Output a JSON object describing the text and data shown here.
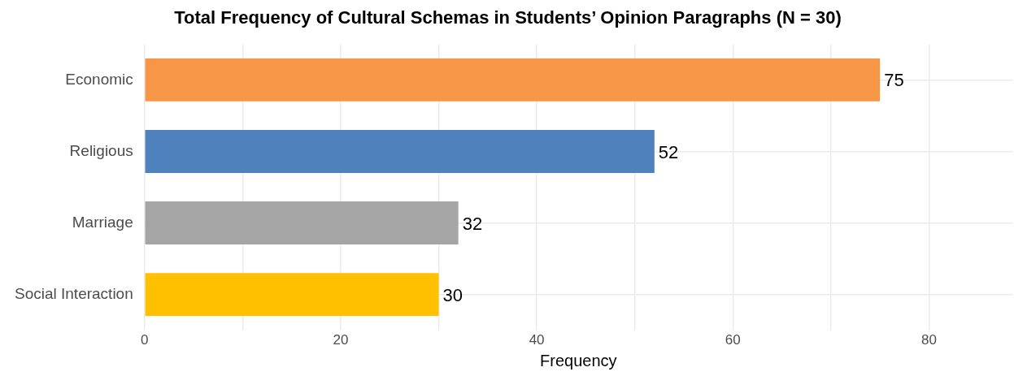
{
  "chart_data": {
    "type": "bar",
    "orientation": "horizontal",
    "title": "Total Frequency of Cultural Schemas in Students’ Opinion Paragraphs (N = 30)",
    "xlabel": "Frequency",
    "categories": [
      "Economic",
      "Religious",
      "Marriage",
      "Social Interaction"
    ],
    "values": [
      75,
      52,
      32,
      30
    ],
    "colors": [
      "#f79646",
      "#4f81bd",
      "#a5a5a5",
      "#ffc000"
    ],
    "xlim": [
      0,
      88.5
    ],
    "xticks": [
      0,
      {
        "value": 10,
        "label": null
      },
      20,
      {
        "value": 30,
        "label": null
      },
      40,
      {
        "value": 50,
        "label": null
      },
      60,
      {
        "value": 70,
        "label": null
      },
      80
    ],
    "grid": true,
    "data_labels": true
  }
}
